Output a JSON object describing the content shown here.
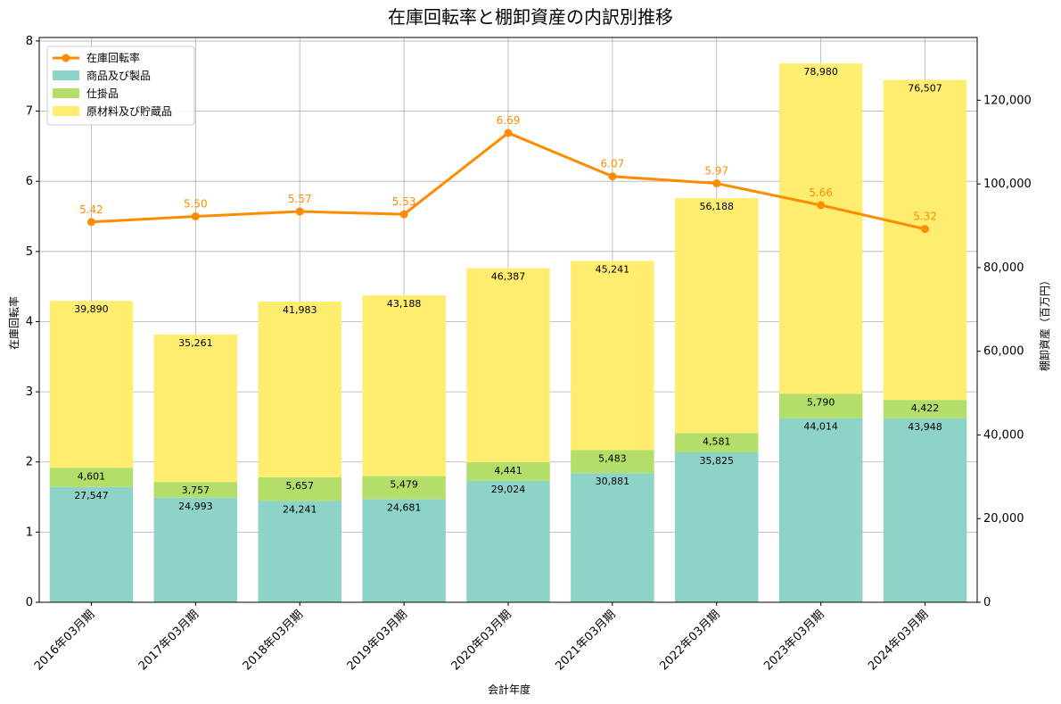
{
  "chart_data": {
    "type": "bar",
    "title": "在庫回転率と棚卸資産の内訳別推移",
    "xlabel": "会計年度",
    "ylabel_left": "在庫回転率",
    "ylabel_right": "棚卸資産（百万円）",
    "categories": [
      "2016年03月期",
      "2017年03月期",
      "2018年03月期",
      "2019年03月期",
      "2020年03月期",
      "2021年03月期",
      "2022年03月期",
      "2023年03月期",
      "2024年03月期"
    ],
    "stacked_series": [
      {
        "name": "商品及び製品",
        "color": "#8dd3c7",
        "values": [
          27547,
          24993,
          24241,
          24681,
          29024,
          30881,
          35825,
          44014,
          43948
        ],
        "labels": [
          "27,547",
          "24,993",
          "24,241",
          "24,681",
          "29,024",
          "30,881",
          "35,825",
          "44,014",
          "43,948"
        ]
      },
      {
        "name": "仕掛品",
        "color": "#b3de69",
        "values": [
          4601,
          3757,
          5657,
          5479,
          4441,
          5483,
          4581,
          5790,
          4422
        ],
        "labels": [
          "4,601",
          "3,757",
          "5,657",
          "5,479",
          "4,441",
          "5,483",
          "4,581",
          "5,790",
          "4,422"
        ]
      },
      {
        "name": "原材料及び貯蔵品",
        "color": "#ffed6f",
        "values": [
          39890,
          35261,
          41983,
          43188,
          46387,
          45241,
          56188,
          78980,
          76507
        ],
        "labels": [
          "39,890",
          "35,261",
          "41,983",
          "43,188",
          "46,387",
          "45,241",
          "56,188",
          "78,980",
          "76,507"
        ]
      }
    ],
    "line_series": {
      "name": "在庫回転率",
      "color": "#ff8c00",
      "values": [
        5.42,
        5.5,
        5.57,
        5.53,
        6.69,
        6.07,
        5.97,
        5.66,
        5.32
      ],
      "labels": [
        "5.42",
        "5.50",
        "5.57",
        "5.53",
        "6.69",
        "6.07",
        "5.97",
        "5.66",
        "5.32"
      ]
    },
    "ylim_left": [
      0,
      8.05
    ],
    "yticks_left": [
      "0",
      "1",
      "2",
      "3",
      "4",
      "5",
      "6",
      "7",
      "8"
    ],
    "ylim_right": [
      0,
      135000
    ],
    "yticks_right": [
      "0",
      "20,000",
      "40,000",
      "60,000",
      "80,000",
      "100,000",
      "120,000"
    ],
    "grid": true,
    "legend_position": "top-left"
  }
}
